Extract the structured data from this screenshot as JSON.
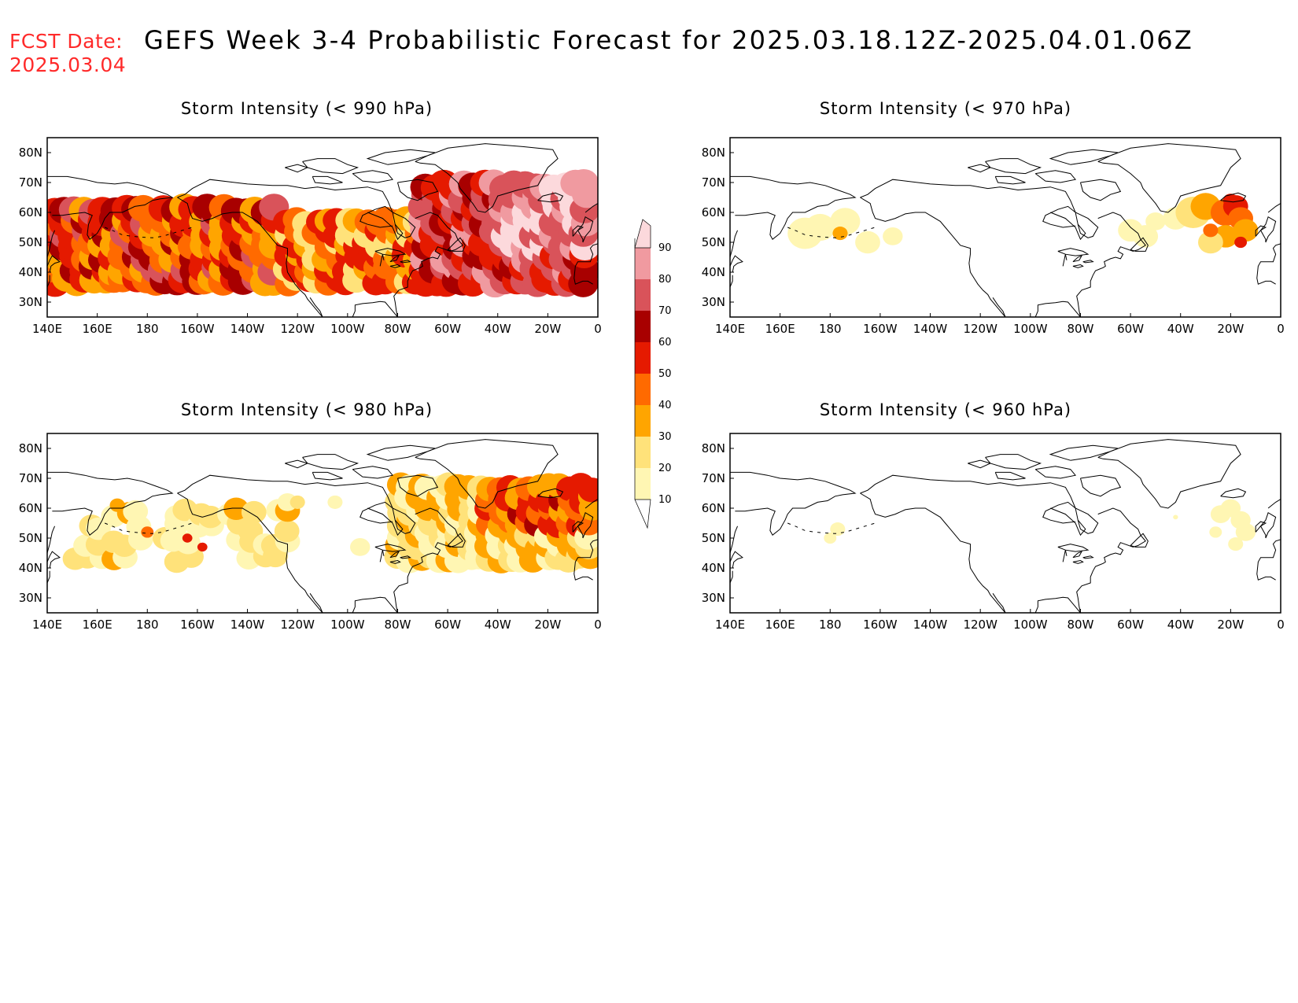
{
  "header": {
    "fcst_label": "FCST Date:",
    "fcst_date": "2025.03.04",
    "title": "GEFS Week 3-4 Probabilistic Forecast for 2025.03.18.12Z-2025.04.01.06Z"
  },
  "axes": {
    "lon_labels": [
      "140E",
      "160E",
      "180",
      "160W",
      "140W",
      "120W",
      "100W",
      "80W",
      "60W",
      "40W",
      "20W",
      "0"
    ],
    "lat_labels": [
      "80N",
      "70N",
      "60N",
      "50N",
      "40N",
      "30N"
    ]
  },
  "panels": [
    {
      "id": "p990",
      "title": "Storm Intensity (< 990 hPa)"
    },
    {
      "id": "p970",
      "title": "Storm Intensity (< 970 hPa)"
    },
    {
      "id": "p980",
      "title": "Storm Intensity (< 980 hPa)"
    },
    {
      "id": "p960",
      "title": "Storm Intensity (< 960 hPa)"
    }
  ],
  "colorbar": {
    "levels": [
      "10",
      "20",
      "30",
      "40",
      "50",
      "60",
      "70",
      "80",
      "90"
    ],
    "colors": [
      "#fff6b3",
      "#ffe27a",
      "#ffa500",
      "#ff6a00",
      "#e51a00",
      "#a80000",
      "#d9535a",
      "#f09aa0",
      "#fcd9dc"
    ]
  },
  "colors": {
    "fcst_text": "#ff2a2a",
    "coastline": "#000000"
  }
}
